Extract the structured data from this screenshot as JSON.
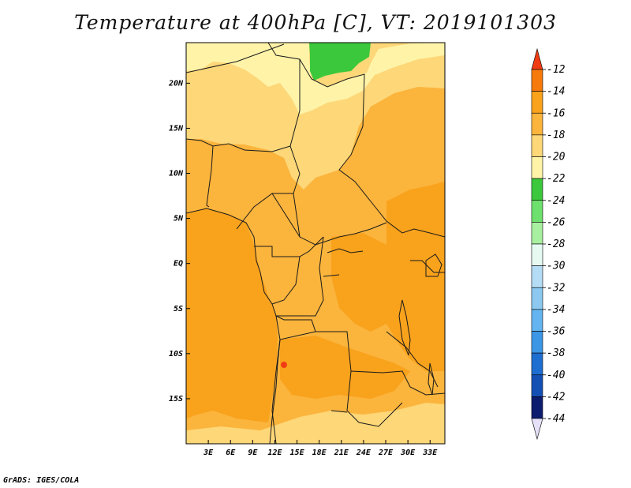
{
  "title": "Temperature at 400hPa [C], VT: 2019101303",
  "credit": "GrADS: IGES/COLA",
  "map": {
    "lon_range": [
      0,
      35
    ],
    "lat_range": [
      -20,
      24.5
    ],
    "lon_ticks": [
      {
        "lon": 3,
        "label": "3E"
      },
      {
        "lon": 6,
        "label": "6E"
      },
      {
        "lon": 9,
        "label": "9E"
      },
      {
        "lon": 12,
        "label": "12E"
      },
      {
        "lon": 15,
        "label": "15E"
      },
      {
        "lon": 18,
        "label": "18E"
      },
      {
        "lon": 21,
        "label": "21E"
      },
      {
        "lon": 24,
        "label": "24E"
      },
      {
        "lon": 27,
        "label": "27E"
      },
      {
        "lon": 30,
        "label": "30E"
      },
      {
        "lon": 33,
        "label": "33E"
      }
    ],
    "lat_ticks": [
      {
        "lat": 20,
        "label": "20N"
      },
      {
        "lat": 15,
        "label": "15N"
      },
      {
        "lat": 10,
        "label": "10N"
      },
      {
        "lat": 5,
        "label": "5N"
      },
      {
        "lat": 0,
        "label": "EQ"
      },
      {
        "lat": -5,
        "label": "5S"
      },
      {
        "lat": -10,
        "label": "10S"
      },
      {
        "lat": -15,
        "label": "15S"
      }
    ]
  },
  "colorbar": {
    "levels": [
      "-12",
      "-14",
      "-16",
      "-18",
      "-20",
      "-22",
      "-24",
      "-26",
      "-28",
      "-30",
      "-32",
      "-34",
      "-36",
      "-38",
      "-40",
      "-42",
      "-44"
    ],
    "colors": [
      "#f03c14",
      "#f77a0c",
      "#f9a21c",
      "#fbb43c",
      "#fdd778",
      "#fff3a8",
      "#3cc83c",
      "#6ee06e",
      "#a8f0a0",
      "#e6faf2",
      "#b4dcf5",
      "#8cc8f0",
      "#64b4f0",
      "#3c96e6",
      "#1e6ed2",
      "#1450b4",
      "#0c1c6e",
      "#e6e0f8"
    ]
  },
  "legend_colors": {
    "t_neg16": "#f9a21c",
    "t_neg18": "#fbb43c",
    "t_neg20": "#fdd778",
    "t_neg22": "#fff3a8",
    "t_neg24": "#3cc83c",
    "t_neg14": "#f77a0c"
  }
}
